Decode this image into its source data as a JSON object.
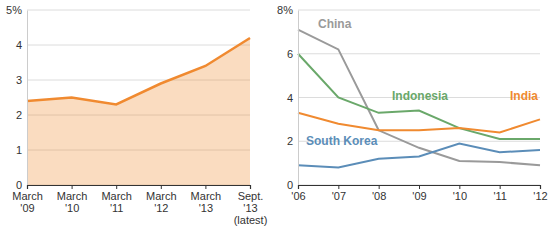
{
  "chart_data": [
    {
      "type": "area",
      "categories": [
        "March\n'09",
        "March\n'10",
        "March\n'11",
        "March\n'12",
        "March\n'13",
        "Sept.\n'13\n(latest)"
      ],
      "values": [
        2.4,
        2.5,
        2.3,
        2.9,
        3.4,
        4.2
      ],
      "color": "#f08a30",
      "ylim": [
        0,
        5
      ],
      "yticks": [
        0,
        1,
        2,
        3,
        4,
        {
          "value": 5,
          "label": "5%"
        }
      ],
      "grid": true
    },
    {
      "type": "line",
      "categories": [
        "'06",
        "'07",
        "'08",
        "'09",
        "'10",
        "'11",
        "'12"
      ],
      "series": [
        {
          "name": "China",
          "color": "#9a9a9a",
          "values": [
            7.1,
            6.2,
            2.5,
            1.7,
            1.1,
            1.05,
            0.9
          ]
        },
        {
          "name": "Indonesia",
          "color": "#6aa86a",
          "values": [
            6.0,
            4.0,
            3.3,
            3.4,
            2.6,
            2.1,
            2.1
          ]
        },
        {
          "name": "India",
          "color": "#f08a30",
          "values": [
            3.3,
            2.8,
            2.5,
            2.5,
            2.6,
            2.4,
            3.0
          ]
        },
        {
          "name": "South Korea",
          "color": "#5b8db8",
          "values": [
            0.9,
            0.8,
            1.2,
            1.3,
            1.9,
            1.5,
            1.6
          ]
        }
      ],
      "ylim": [
        0,
        8
      ],
      "yticks": [
        0,
        2,
        4,
        6,
        {
          "value": 8,
          "label": "8%"
        }
      ],
      "grid": true
    }
  ]
}
